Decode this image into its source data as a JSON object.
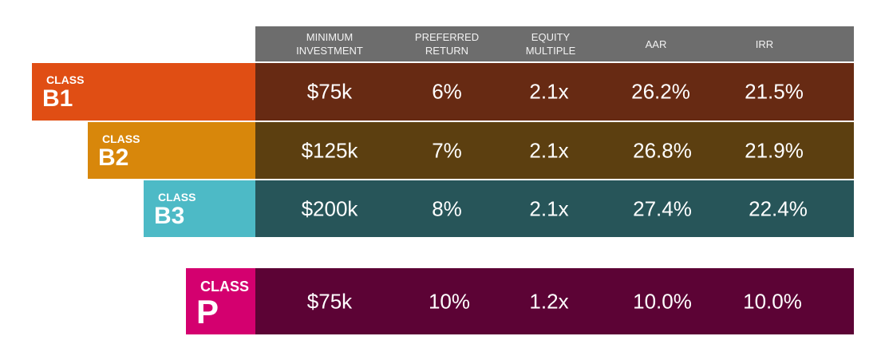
{
  "header": [
    "MINIMUM INVESTMENT",
    "PREFERRED RETURN",
    "EQUITY MULTIPLE",
    "AAR",
    "IRR"
  ],
  "rows": [
    {
      "class_label": "CLASS",
      "class_name": "B1",
      "cells": [
        "$75k",
        "6%",
        "2.1x",
        "26.2%",
        "21.5%"
      ]
    },
    {
      "class_label": "CLASS",
      "class_name": "B2",
      "cells": [
        "$125k",
        "7%",
        "2.1x",
        "26.8%",
        "21.9%"
      ]
    },
    {
      "class_label": "CLASS",
      "class_name": "B3",
      "cells": [
        "$200k",
        "8%",
        "2.1x",
        "27.4%",
        "22.4%"
      ]
    },
    {
      "class_label": "CLASS",
      "class_name": "P",
      "cells": [
        "$75k",
        "10%",
        "1.2x",
        "10.0%",
        "10.0%"
      ]
    }
  ]
}
